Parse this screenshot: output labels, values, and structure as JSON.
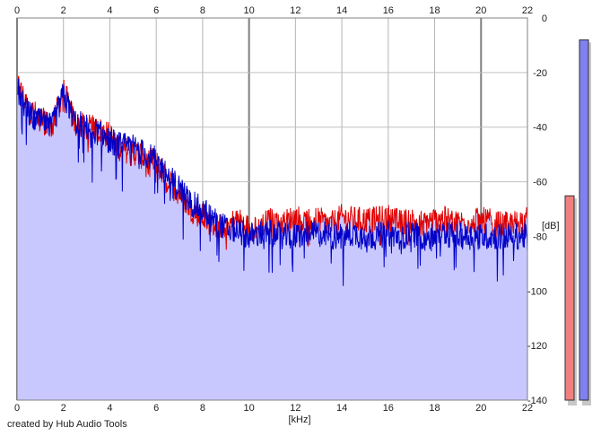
{
  "footer": {
    "credit": "created by Hub Audio Tools"
  },
  "chart_data": {
    "type": "line",
    "xlabel": "[kHz]",
    "ylabel": "[dB]",
    "xlim": [
      0,
      22
    ],
    "ylim": [
      -140,
      0
    ],
    "x_ticks": [
      0,
      2,
      4,
      6,
      8,
      10,
      12,
      14,
      16,
      18,
      20,
      22
    ],
    "y_ticks": [
      0,
      -20,
      -40,
      -60,
      -80,
      -100,
      -120,
      -140
    ],
    "x_tick_labels": [
      "0",
      "2",
      "4",
      "6",
      "8",
      "10",
      "12",
      "14",
      "16",
      "18",
      "20",
      "22"
    ],
    "y_tick_labels": [
      "0",
      "-20",
      "-40",
      "-60",
      "-80",
      "-100",
      "-120",
      "-140"
    ],
    "grid": true,
    "fill_color": "#c8c8ff",
    "series": [
      {
        "color": "#e00000",
        "x": [
          0.0,
          0.5,
          1.0,
          1.5,
          2.0,
          2.5,
          3.0,
          3.5,
          4.0,
          4.5,
          5.0,
          5.5,
          6.0,
          6.5,
          7.0,
          7.5,
          8.0,
          8.5,
          9.0,
          9.5,
          10.0,
          10.5,
          11.0,
          11.5,
          12.0,
          12.5,
          13.0,
          13.5,
          14.0,
          14.5,
          15.0,
          15.5,
          16.0,
          16.5,
          17.0,
          17.5,
          18.0,
          18.5,
          19.0,
          19.5,
          20.0,
          20.5,
          21.0,
          21.5,
          22.0
        ],
        "y": [
          -24,
          -33,
          -37,
          -40,
          -26,
          -39,
          -40,
          -41,
          -43,
          -48,
          -49,
          -51,
          -53,
          -60,
          -64,
          -70,
          -73,
          -76,
          -76,
          -74,
          -77,
          -76,
          -74,
          -75,
          -73,
          -75,
          -74,
          -76,
          -73,
          -74,
          -74,
          -74,
          -73,
          -75,
          -74,
          -75,
          -74,
          -74,
          -75,
          -75,
          -74,
          -75,
          -76,
          -75,
          -74
        ],
        "peak": 0.55
      },
      {
        "color": "#0000c8",
        "x": [
          0.0,
          0.5,
          1.0,
          1.5,
          2.0,
          2.5,
          3.0,
          3.5,
          4.0,
          4.5,
          5.0,
          5.5,
          6.0,
          6.5,
          7.0,
          7.5,
          8.0,
          8.5,
          9.0,
          9.5,
          10.0,
          10.5,
          11.0,
          11.5,
          12.0,
          12.5,
          13.0,
          13.5,
          14.0,
          14.5,
          15.0,
          15.5,
          16.0,
          16.5,
          17.0,
          17.5,
          18.0,
          18.5,
          19.0,
          19.5,
          20.0,
          20.5,
          21.0,
          21.5,
          22.0
        ],
        "y": [
          -26,
          -35,
          -38,
          -40,
          -28,
          -38,
          -40,
          -42,
          -45,
          -47,
          -47,
          -50,
          -52,
          -58,
          -62,
          -68,
          -70,
          -74,
          -77,
          -78,
          -80,
          -79,
          -79,
          -80,
          -80,
          -79,
          -79,
          -80,
          -80,
          -79,
          -80,
          -80,
          -79,
          -80,
          -79,
          -80,
          -80,
          -79,
          -80,
          -80,
          -80,
          -80,
          -80,
          -80,
          -80
        ],
        "peak": 0.97
      }
    ]
  }
}
